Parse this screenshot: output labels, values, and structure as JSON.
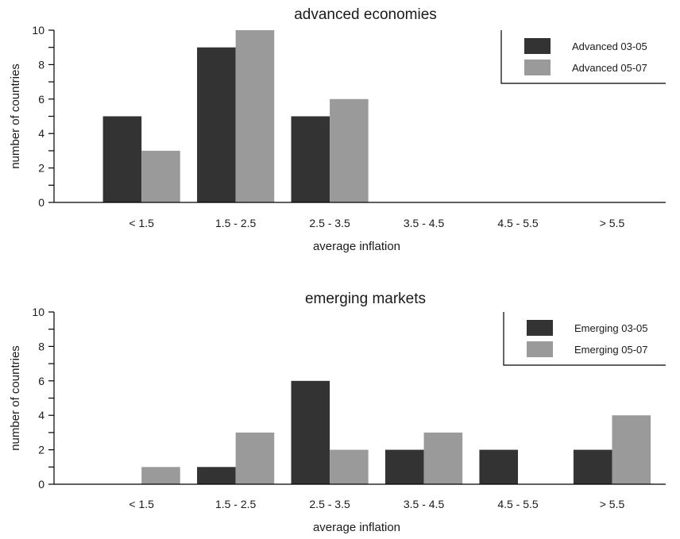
{
  "chart_data": [
    {
      "type": "bar",
      "title": "advanced economies",
      "xlabel": "average inflation",
      "ylabel": "number of countries",
      "categories": [
        "< 1.5",
        "1.5 - 2.5",
        "2.5 - 3.5",
        "3.5 - 4.5",
        "4.5 - 5.5",
        "> 5.5"
      ],
      "series": [
        {
          "name": "Advanced 03-05",
          "values": [
            5,
            9,
            5,
            0,
            0,
            0
          ]
        },
        {
          "name": "Advanced 05-07",
          "values": [
            3,
            10,
            6,
            0,
            0,
            0
          ]
        }
      ],
      "ylim": [
        0,
        10
      ],
      "yticks": [
        "0",
        "2",
        "4",
        "6",
        "8",
        "10"
      ],
      "grid": false,
      "legend_position": "top-right",
      "colors": [
        "#333333",
        "#9a9a9a"
      ]
    },
    {
      "type": "bar",
      "title": "emerging markets",
      "xlabel": "average inflation",
      "ylabel": "number of countries",
      "categories": [
        "< 1.5",
        "1.5 - 2.5",
        "2.5 - 3.5",
        "3.5 - 4.5",
        "4.5 - 5.5",
        "> 5.5"
      ],
      "series": [
        {
          "name": "Emerging 03-05",
          "values": [
            0,
            1,
            6,
            2,
            2,
            2
          ]
        },
        {
          "name": "Emerging 05-07",
          "values": [
            1,
            3,
            2,
            3,
            0,
            4
          ]
        }
      ],
      "ylim": [
        0,
        10
      ],
      "yticks": [
        "0",
        "2",
        "4",
        "6",
        "8",
        "10"
      ],
      "grid": false,
      "legend_position": "top-right",
      "colors": [
        "#333333",
        "#9a9a9a"
      ]
    }
  ]
}
